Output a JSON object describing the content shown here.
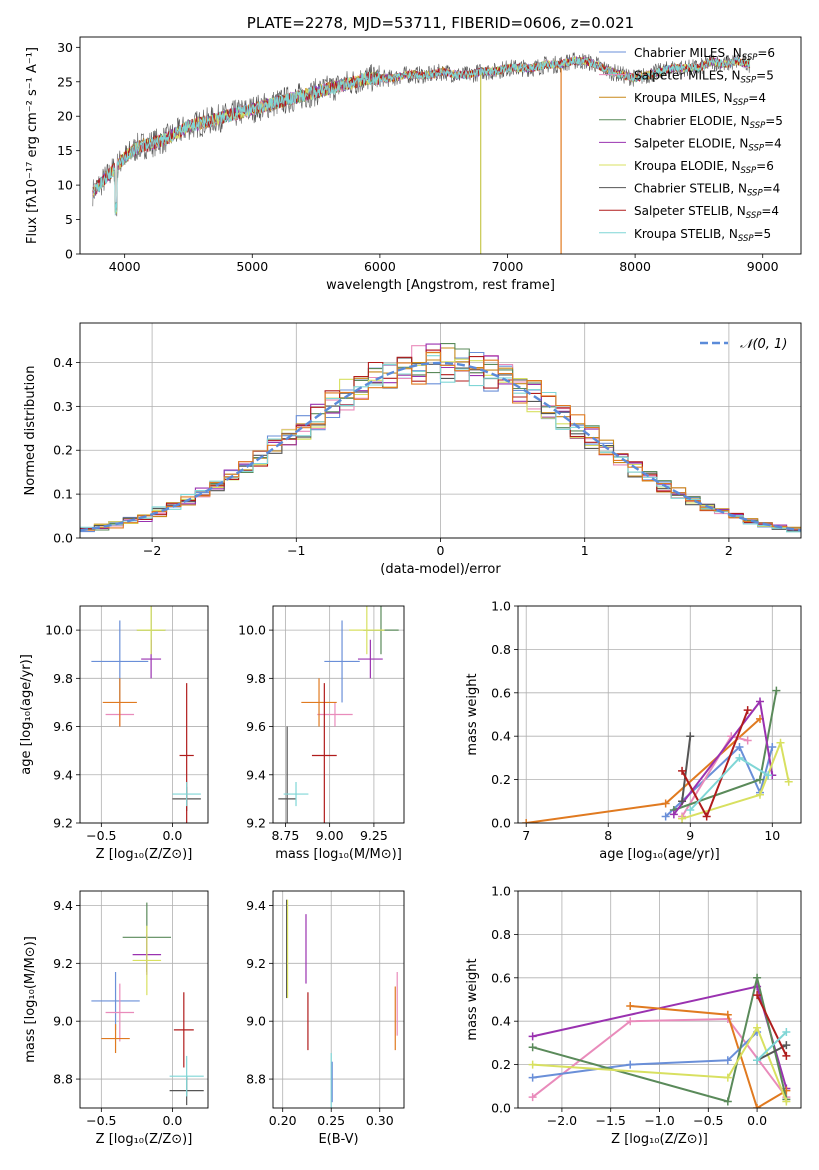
{
  "chart_data": [
    {
      "type": "line",
      "title": "PLATE=2278, MJD=53711, FIBERID=0606, z=0.021",
      "xlabel": "wavelength [Angstrom, rest frame]",
      "ylabel": "Flux [fλ10⁻¹⁷ erg cm⁻² s⁻¹ A⁻¹]",
      "xlim": [
        3650,
        9300
      ],
      "ylim": [
        0,
        31.5
      ],
      "xticks": [
        4000,
        5000,
        6000,
        7000,
        8000,
        9000
      ],
      "yticks": [
        0,
        5,
        10,
        15,
        20,
        25,
        30
      ],
      "grid": false,
      "legend_position": "top-right",
      "x": [
        3750,
        3800,
        3850,
        3900,
        4000,
        4100,
        4200,
        4300,
        4400,
        4500,
        4600,
        4700,
        4800,
        4900,
        5000,
        5100,
        5200,
        5300,
        5400,
        5500,
        5600,
        5700,
        5800,
        5900,
        6000,
        6100,
        6200,
        6300,
        6400,
        6500,
        6600,
        6700,
        6800,
        6900,
        7000,
        7100,
        7200,
        7300,
        7400,
        7500,
        7600,
        7700,
        7800,
        7900,
        8000,
        8100,
        8200,
        8300,
        8400,
        8500,
        8600,
        8700,
        8800,
        8900
      ],
      "series": [
        {
          "name": "Chabrier MILES, N_SSP=6",
          "color": "#6a8fd8"
        },
        {
          "name": "Salpeter MILES, N_SSP=5",
          "color": "#e98bbb"
        },
        {
          "name": "Kroupa MILES, N_SSP=4",
          "color": "#c8881a"
        },
        {
          "name": "Chabrier ELODIE, N_SSP=5",
          "color": "#5a8a5a"
        },
        {
          "name": "Salpeter ELODIE, N_SSP=4",
          "color": "#9a32b0"
        },
        {
          "name": "Kroupa ELODIE, N_SSP=6",
          "color": "#d8e060"
        },
        {
          "name": "Chabrier STELIB, N_SSP=4",
          "color": "#555555"
        },
        {
          "name": "Salpeter STELIB, N_SSP=4",
          "color": "#b01c1c"
        },
        {
          "name": "Kroupa STELIB, N_SSP=5",
          "color": "#7fd6d6"
        }
      ],
      "flux_envelope": [
        9,
        10,
        11,
        12,
        14,
        15.5,
        16,
        16.5,
        17.5,
        18.5,
        19,
        19.5,
        20,
        20.5,
        21,
        21.5,
        22,
        22.5,
        23,
        23.5,
        24,
        24.5,
        25,
        25.5,
        25.5,
        25.5,
        26,
        26,
        26,
        26.5,
        26,
        26,
        26.5,
        26.5,
        27,
        27,
        27,
        27.5,
        27.5,
        28,
        28,
        27.5,
        26.5,
        26,
        25.5,
        26,
        26.5,
        27,
        27,
        27,
        28,
        27.5,
        28,
        27.5
      ]
    },
    {
      "type": "bar",
      "xlabel": "(data-model)/error",
      "ylabel": "Normed distribution",
      "xlim": [
        -2.5,
        2.5
      ],
      "ylim": [
        0,
        0.49
      ],
      "xticks": [
        -2,
        -1,
        0,
        1,
        2
      ],
      "yticks": [
        0.0,
        0.1,
        0.2,
        0.3,
        0.4
      ],
      "grid": true,
      "legend": [
        "𝒩(0, 1)"
      ],
      "legend_position": "top-right",
      "bin_width": 0.1,
      "reference_curve": "normal pdf, mean 0, sd 1",
      "reference_color": "#5b8bd9"
    },
    {
      "type": "scatter",
      "xlabel": "Z [log₁₀(Z/Z⊙)]",
      "ylabel": "age  [log₁₀(age/yr)]",
      "xlim": [
        -0.65,
        0.25
      ],
      "ylim": [
        9.2,
        10.1
      ],
      "xticks": [
        -0.5,
        0.0
      ],
      "yticks": [
        9.2,
        9.4,
        9.6,
        9.8,
        10.0
      ],
      "grid": true,
      "points": [
        {
          "color": "#6a8fd8",
          "x": -0.37,
          "y": 9.87,
          "xerr": 0.2,
          "yerr": 0.17
        },
        {
          "color": "#e98bbb",
          "x": -0.37,
          "y": 9.65,
          "xerr": 0.1,
          "yerr": 0.05
        },
        {
          "color": "#e07a20",
          "x": -0.37,
          "y": 9.7,
          "xerr": 0.12,
          "yerr": 0.1
        },
        {
          "color": "#5a8a5a",
          "x": -0.15,
          "y": 10.0,
          "xerr": 0.1,
          "yerr": 0.1
        },
        {
          "color": "#9a32b0",
          "x": -0.15,
          "y": 9.88,
          "xerr": 0.07,
          "yerr": 0.08
        },
        {
          "color": "#d8e060",
          "x": -0.15,
          "y": 10.0,
          "xerr": 0.1,
          "yerr": 0.1
        },
        {
          "color": "#555555",
          "x": 0.1,
          "y": 9.3,
          "xerr": 0.1,
          "yerr": 0.05
        },
        {
          "color": "#b01c1c",
          "x": 0.1,
          "y": 9.48,
          "xerr": 0.05,
          "yerr": 0.3
        },
        {
          "color": "#7fd6d6",
          "x": 0.1,
          "y": 9.32,
          "xerr": 0.1,
          "yerr": 0.05
        }
      ]
    },
    {
      "type": "scatter",
      "xlabel": "mass [log₁₀(M/M⊙)]",
      "xlim": [
        8.68,
        9.42
      ],
      "ylim": [
        9.2,
        10.1
      ],
      "xticks": [
        8.75,
        9.0,
        9.25
      ],
      "yticks": [
        9.2,
        9.4,
        9.6,
        9.8,
        10.0
      ],
      "grid": true,
      "points": [
        {
          "color": "#6a8fd8",
          "x": 9.07,
          "y": 9.87,
          "xerr": 0.1,
          "yerr": 0.17
        },
        {
          "color": "#e98bbb",
          "x": 9.03,
          "y": 9.65,
          "xerr": 0.1,
          "yerr": 0.05
        },
        {
          "color": "#e07a20",
          "x": 8.94,
          "y": 9.7,
          "xerr": 0.1,
          "yerr": 0.1
        },
        {
          "color": "#5a8a5a",
          "x": 9.29,
          "y": 10.0,
          "xerr": 0.1,
          "yerr": 0.1
        },
        {
          "color": "#9a32b0",
          "x": 9.23,
          "y": 9.88,
          "xerr": 0.07,
          "yerr": 0.08
        },
        {
          "color": "#d8e060",
          "x": 9.21,
          "y": 10.0,
          "xerr": 0.1,
          "yerr": 0.1
        },
        {
          "color": "#555555",
          "x": 8.76,
          "y": 9.3,
          "xerr": 0.05,
          "yerr": 0.3
        },
        {
          "color": "#b01c1c",
          "x": 8.97,
          "y": 9.48,
          "xerr": 0.07,
          "yerr": 0.3
        },
        {
          "color": "#7fd6d6",
          "x": 8.81,
          "y": 9.32,
          "xerr": 0.07,
          "yerr": 0.05
        }
      ]
    },
    {
      "type": "line",
      "xlabel": "age  [log₁₀(age/yr)]",
      "ylabel": "mass weight",
      "xlim": [
        6.9,
        10.35
      ],
      "ylim": [
        0,
        1.0
      ],
      "xticks": [
        7,
        8,
        9,
        10
      ],
      "yticks": [
        0.0,
        0.2,
        0.4,
        0.6,
        0.8,
        1.0
      ],
      "grid": true,
      "series": [
        {
          "color": "#e07a20",
          "x": [
            7.0,
            8.7,
            9.85
          ],
          "y": [
            0.0,
            0.09,
            0.48
          ]
        },
        {
          "color": "#6a8fd8",
          "x": [
            8.7,
            9.6,
            9.85,
            10.0
          ],
          "y": [
            0.03,
            0.35,
            0.14,
            0.35
          ]
        },
        {
          "color": "#e98bbb",
          "x": [
            8.9,
            9.5,
            9.7
          ],
          "y": [
            0.03,
            0.4,
            0.38
          ]
        },
        {
          "color": "#5a8a5a",
          "x": [
            8.8,
            9.85,
            10.05
          ],
          "y": [
            0.06,
            0.2,
            0.61
          ]
        },
        {
          "color": "#9a32b0",
          "x": [
            8.8,
            9.85,
            10.0
          ],
          "y": [
            0.04,
            0.56,
            0.22
          ]
        },
        {
          "color": "#d8e060",
          "x": [
            8.9,
            9.85,
            10.1,
            10.2
          ],
          "y": [
            0.02,
            0.13,
            0.37,
            0.19
          ]
        },
        {
          "color": "#555555",
          "x": [
            8.9,
            9.0
          ],
          "y": [
            0.1,
            0.4
          ]
        },
        {
          "color": "#b01c1c",
          "x": [
            8.9,
            9.2,
            9.7
          ],
          "y": [
            0.24,
            0.03,
            0.52
          ]
        },
        {
          "color": "#7fd6d6",
          "x": [
            9.0,
            9.6,
            9.95
          ],
          "y": [
            0.06,
            0.3,
            0.22
          ]
        }
      ]
    },
    {
      "type": "scatter",
      "xlabel": "Z [log₁₀(Z/Z⊙)]",
      "ylabel": "mass [log₁₀(M/M⊙)]",
      "xlim": [
        -0.65,
        0.25
      ],
      "ylim": [
        8.7,
        9.45
      ],
      "xticks": [
        -0.5,
        0.0
      ],
      "yticks": [
        8.8,
        9.0,
        9.2,
        9.4
      ],
      "grid": true,
      "points": [
        {
          "color": "#6a8fd8",
          "x": -0.4,
          "y": 9.07,
          "xerr": 0.17,
          "yerr": 0.1
        },
        {
          "color": "#e98bbb",
          "x": -0.37,
          "y": 9.03,
          "xerr": 0.1,
          "yerr": 0.1
        },
        {
          "color": "#e07a20",
          "x": -0.4,
          "y": 8.94,
          "xerr": 0.1,
          "yerr": 0.05
        },
        {
          "color": "#5a8a5a",
          "x": -0.18,
          "y": 9.29,
          "xerr": 0.17,
          "yerr": 0.12
        },
        {
          "color": "#9a32b0",
          "x": -0.18,
          "y": 9.23,
          "xerr": 0.1,
          "yerr": 0.07
        },
        {
          "color": "#d8e060",
          "x": -0.18,
          "y": 9.21,
          "xerr": 0.1,
          "yerr": 0.12
        },
        {
          "color": "#555555",
          "x": 0.1,
          "y": 8.76,
          "xerr": 0.12,
          "yerr": 0.05
        },
        {
          "color": "#b01c1c",
          "x": 0.08,
          "y": 8.97,
          "xerr": 0.07,
          "yerr": 0.13
        },
        {
          "color": "#7fd6d6",
          "x": 0.1,
          "y": 8.81,
          "xerr": 0.12,
          "yerr": 0.07
        }
      ]
    },
    {
      "type": "scatter",
      "xlabel": "E(B-V)",
      "xlim": [
        0.19,
        0.325
      ],
      "ylim": [
        8.7,
        9.45
      ],
      "xticks": [
        0.2,
        0.25,
        0.3
      ],
      "yticks": [
        8.8,
        9.0,
        9.2,
        9.4
      ],
      "grid": true,
      "points": [
        {
          "color": "#555555",
          "x": 0.204,
          "y": 9.25,
          "yerr": 0.17
        },
        {
          "color": "#d8e060",
          "x": 0.205,
          "y": 9.25,
          "yerr": 0.17
        },
        {
          "color": "#9a32b0",
          "x": 0.224,
          "y": 9.25,
          "yerr": 0.12
        },
        {
          "color": "#b01c1c",
          "x": 0.226,
          "y": 9.0,
          "yerr": 0.1
        },
        {
          "color": "#7fd6d6",
          "x": 0.25,
          "y": 8.79,
          "yerr": 0.1
        },
        {
          "color": "#6a8fd8",
          "x": 0.251,
          "y": 8.79,
          "yerr": 0.07
        },
        {
          "color": "#e07a20",
          "x": 0.316,
          "y": 9.01,
          "yerr": 0.11
        },
        {
          "color": "#e98bbb",
          "x": 0.318,
          "y": 9.06,
          "yerr": 0.11
        }
      ]
    },
    {
      "type": "line",
      "xlabel": "Z [log₁₀(Z/Z⊙)]",
      "ylabel": "mass weight",
      "xlim": [
        -2.45,
        0.45
      ],
      "ylim": [
        0,
        1.0
      ],
      "xticks": [
        -2.0,
        -1.5,
        -1.0,
        -0.5,
        0.0
      ],
      "yticks": [
        0.0,
        0.2,
        0.4,
        0.6,
        0.8,
        1.0
      ],
      "grid": true,
      "series": [
        {
          "color": "#9a32b0",
          "x": [
            -2.3,
            0.0,
            0.3
          ],
          "y": [
            0.33,
            0.56,
            0.09
          ]
        },
        {
          "color": "#e98bbb",
          "x": [
            -2.3,
            -1.3,
            -0.3,
            0.3
          ],
          "y": [
            0.05,
            0.4,
            0.41,
            0.05
          ]
        },
        {
          "color": "#e07a20",
          "x": [
            -1.3,
            -0.3,
            0.0,
            0.3
          ],
          "y": [
            0.47,
            0.43,
            0.0,
            0.08
          ]
        },
        {
          "color": "#6a8fd8",
          "x": [
            -2.3,
            -1.3,
            -0.3,
            0.0
          ],
          "y": [
            0.14,
            0.2,
            0.22,
            0.35
          ]
        },
        {
          "color": "#5a8a5a",
          "x": [
            -2.3,
            -0.3,
            0.0,
            0.3
          ],
          "y": [
            0.28,
            0.03,
            0.6,
            0.04
          ]
        },
        {
          "color": "#d8e060",
          "x": [
            -2.3,
            -0.3,
            0.0,
            0.3
          ],
          "y": [
            0.2,
            0.14,
            0.37,
            0.03
          ]
        },
        {
          "color": "#555555",
          "x": [
            0.0,
            0.3
          ],
          "y": [
            0.22,
            0.29
          ]
        },
        {
          "color": "#b01c1c",
          "x": [
            0.0,
            0.3
          ],
          "y": [
            0.52,
            0.24
          ]
        },
        {
          "color": "#7fd6d6",
          "x": [
            0.0,
            0.3
          ],
          "y": [
            0.22,
            0.35
          ]
        }
      ]
    }
  ]
}
